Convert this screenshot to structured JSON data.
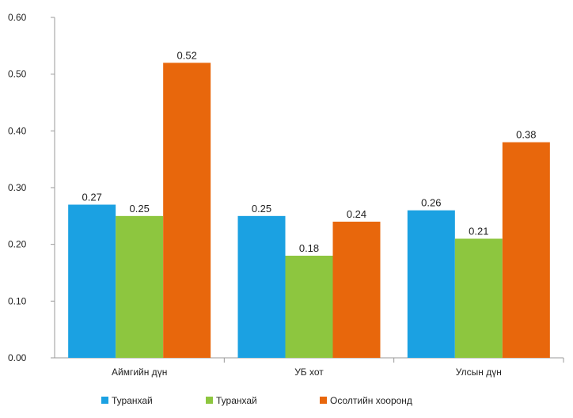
{
  "chart_data": {
    "type": "bar",
    "categories": [
      "Аймгийн дүн",
      "УБ хот",
      "Улсын дүн"
    ],
    "series": [
      {
        "name": "Туранхай",
        "values": [
          0.27,
          0.25,
          0.26
        ],
        "color": "#1BA1E2",
        "labels": [
          "0.27",
          "0.25",
          "0.26"
        ]
      },
      {
        "name": "Туранхай",
        "values": [
          0.25,
          0.18,
          0.21
        ],
        "color": "#8DC63F",
        "labels": [
          "0.25",
          "0.18",
          "0.21"
        ]
      },
      {
        "name": "Осолтийн хооронд",
        "values": [
          0.52,
          0.24,
          0.38
        ],
        "color": "#E8670C",
        "labels": [
          "0.52",
          "0.24",
          "0.38"
        ]
      }
    ],
    "ylim": [
      0,
      0.6
    ],
    "yticks": [
      "0.00",
      "0.10",
      "0.20",
      "0.30",
      "0.40",
      "0.50",
      "0.60"
    ],
    "grid": false,
    "legend_position": "bottom"
  }
}
